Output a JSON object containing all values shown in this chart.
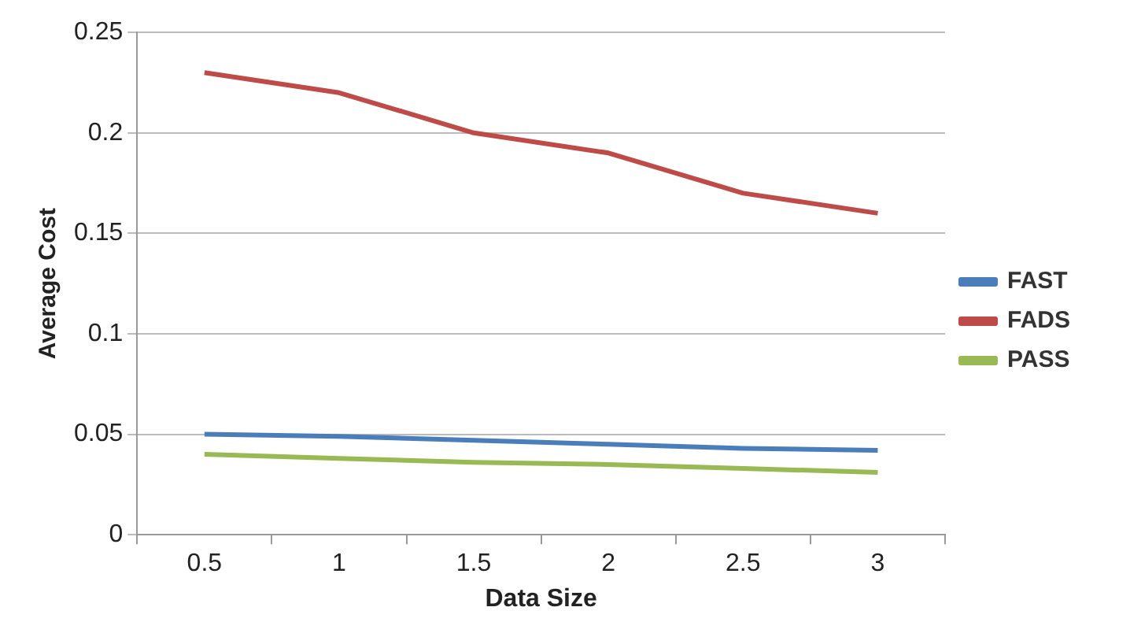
{
  "chart_data": {
    "type": "line",
    "xlabel": "Data Size",
    "ylabel": "Average Cost",
    "categories": [
      "0.5",
      "1",
      "1.5",
      "2",
      "2.5",
      "3"
    ],
    "series": [
      {
        "name": "FAST",
        "color": "#4a7ebb",
        "values": [
          0.05,
          0.049,
          0.047,
          0.045,
          0.043,
          0.042
        ]
      },
      {
        "name": "FADS",
        "color": "#be4b48",
        "values": [
          0.23,
          0.22,
          0.2,
          0.19,
          0.17,
          0.16
        ]
      },
      {
        "name": "PASS",
        "color": "#98b954",
        "values": [
          0.04,
          0.038,
          0.036,
          0.035,
          0.033,
          0.031
        ]
      }
    ],
    "ylim": [
      0,
      0.25
    ],
    "yticks": [
      0,
      0.05,
      0.1,
      0.15,
      0.2,
      0.25
    ],
    "grid": "y",
    "legend": "right",
    "marker": "none",
    "line_style": "solid"
  }
}
